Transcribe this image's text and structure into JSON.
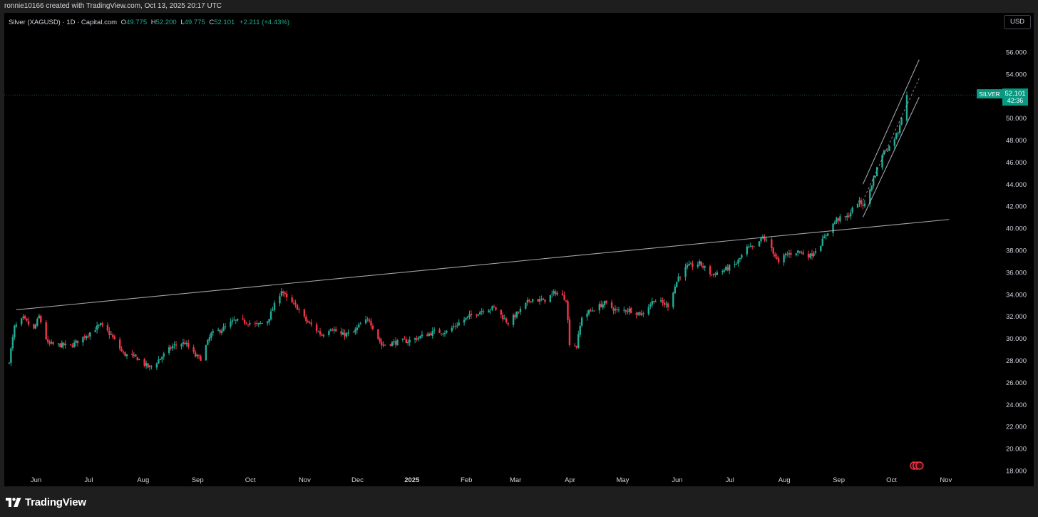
{
  "header": {
    "created_text": "ronnie10166 created with TradingView.com, Oct 13, 2025 20:17 UTC"
  },
  "legend": {
    "symbol": "Silver (XAGUSD) · 1D · Capital.com",
    "open_key": "O",
    "open": "49.775",
    "high_key": "H",
    "high": "52.200",
    "low_key": "L",
    "low": "49.775",
    "close_key": "C",
    "close": "52.101",
    "change": "+2.211 (+4.43%)"
  },
  "currency_button": "USD",
  "price_tag": {
    "symbol": "SILVER",
    "price": "52.101",
    "countdown": "42:36",
    "color": "#089981"
  },
  "y_axis": {
    "labels": [
      "56.000",
      "54.000",
      "52.000",
      "50.000",
      "48.000",
      "46.000",
      "44.000",
      "42.000",
      "40.000",
      "38.000",
      "36.000",
      "34.000",
      "32.000",
      "30.000",
      "28.000",
      "26.000",
      "24.000",
      "22.000",
      "20.000",
      "18.000"
    ]
  },
  "x_axis": {
    "labels": [
      "Jun",
      "Jul",
      "Aug",
      "Sep",
      "Oct",
      "Nov",
      "Dec",
      "2025",
      "Feb",
      "Mar",
      "Apr",
      "May",
      "Jun",
      "Jul",
      "Aug",
      "Sep",
      "Oct",
      "Nov"
    ]
  },
  "footer": {
    "brand": "TradingView"
  },
  "colors": {
    "up": "#22ab94",
    "down": "#f23645",
    "trendline": "#b2b5be",
    "background": "#000000"
  },
  "chart_data": {
    "type": "candlestick",
    "title": "Silver (XAGUSD) · 1D · Capital.com",
    "xlabel": "",
    "ylabel": "",
    "ylim": [
      17,
      58
    ],
    "y_ticks": [
      56,
      54,
      52,
      50,
      48,
      46,
      44,
      42,
      40,
      38,
      36,
      34,
      32,
      30,
      28,
      26,
      24,
      22,
      20,
      18
    ],
    "x_tick_labels": [
      "Jun",
      "Jul",
      "Aug",
      "Sep",
      "Oct",
      "Nov",
      "Dec",
      "2025",
      "Feb",
      "Mar",
      "Apr",
      "May",
      "Jun",
      "Jul",
      "Aug",
      "Sep",
      "Oct",
      "Nov"
    ],
    "current_price": 52.101,
    "series": [
      {
        "name": "XAGUSD close (approx.)",
        "points": [
          [
            "2024-05-20",
            28.0
          ],
          [
            "2024-05-23",
            31.0
          ],
          [
            "2024-05-28",
            31.8
          ],
          [
            "2024-06-03",
            30.8
          ],
          [
            "2024-06-06",
            32.0
          ],
          [
            "2024-06-11",
            29.5
          ],
          [
            "2024-06-18",
            29.4
          ],
          [
            "2024-06-24",
            29.3
          ],
          [
            "2024-07-02",
            30.2
          ],
          [
            "2024-07-08",
            30.9
          ],
          [
            "2024-07-11",
            31.2
          ],
          [
            "2024-07-17",
            30.3
          ],
          [
            "2024-07-24",
            28.6
          ],
          [
            "2024-08-01",
            28.2
          ],
          [
            "2024-08-07",
            27.4
          ],
          [
            "2024-08-09",
            27.4
          ],
          [
            "2024-08-14",
            28.2
          ],
          [
            "2024-08-21",
            29.3
          ],
          [
            "2024-08-28",
            29.6
          ],
          [
            "2024-09-03",
            28.4
          ],
          [
            "2024-09-06",
            28.2
          ],
          [
            "2024-09-12",
            30.4
          ],
          [
            "2024-09-18",
            30.8
          ],
          [
            "2024-09-25",
            31.6
          ],
          [
            "2024-10-02",
            31.5
          ],
          [
            "2024-10-08",
            31.2
          ],
          [
            "2024-10-14",
            31.6
          ],
          [
            "2024-10-22",
            34.4
          ],
          [
            "2024-10-25",
            33.6
          ],
          [
            "2024-10-31",
            32.8
          ],
          [
            "2024-11-05",
            31.6
          ],
          [
            "2024-11-08",
            31.2
          ],
          [
            "2024-11-14",
            30.3
          ],
          [
            "2024-11-19",
            31.0
          ],
          [
            "2024-11-25",
            30.3
          ],
          [
            "2024-12-02",
            30.5
          ],
          [
            "2024-12-06",
            31.3
          ],
          [
            "2024-12-11",
            31.7
          ],
          [
            "2024-12-18",
            29.4
          ],
          [
            "2024-12-24",
            29.6
          ],
          [
            "2025-01-03",
            29.8
          ],
          [
            "2025-01-10",
            30.2
          ],
          [
            "2025-01-17",
            30.6
          ],
          [
            "2025-01-24",
            30.6
          ],
          [
            "2025-01-31",
            31.4
          ],
          [
            "2025-02-06",
            32.0
          ],
          [
            "2025-02-14",
            32.6
          ],
          [
            "2025-02-20",
            32.8
          ],
          [
            "2025-02-28",
            31.4
          ],
          [
            "2025-03-06",
            32.4
          ],
          [
            "2025-03-13",
            33.6
          ],
          [
            "2025-03-20",
            33.4
          ],
          [
            "2025-03-27",
            34.2
          ],
          [
            "2025-04-02",
            33.6
          ],
          [
            "2025-04-04",
            29.6
          ],
          [
            "2025-04-08",
            29.3
          ],
          [
            "2025-04-11",
            32.0
          ],
          [
            "2025-04-17",
            32.6
          ],
          [
            "2025-04-24",
            33.2
          ],
          [
            "2025-05-01",
            32.5
          ],
          [
            "2025-05-08",
            32.6
          ],
          [
            "2025-05-15",
            32.2
          ],
          [
            "2025-05-22",
            33.5
          ],
          [
            "2025-05-30",
            33.0
          ],
          [
            "2025-06-05",
            35.6
          ],
          [
            "2025-06-10",
            36.5
          ],
          [
            "2025-06-17",
            36.8
          ],
          [
            "2025-06-24",
            35.8
          ],
          [
            "2025-07-01",
            36.2
          ],
          [
            "2025-07-08",
            36.8
          ],
          [
            "2025-07-14",
            38.2
          ],
          [
            "2025-07-18",
            38.2
          ],
          [
            "2025-07-23",
            39.2
          ],
          [
            "2025-07-28",
            38.2
          ],
          [
            "2025-08-01",
            36.8
          ],
          [
            "2025-08-05",
            37.6
          ],
          [
            "2025-08-12",
            37.9
          ],
          [
            "2025-08-19",
            37.5
          ],
          [
            "2025-08-25",
            38.6
          ],
          [
            "2025-08-29",
            39.7
          ],
          [
            "2025-09-03",
            40.8
          ],
          [
            "2025-09-09",
            41.0
          ],
          [
            "2025-09-15",
            42.4
          ],
          [
            "2025-09-19",
            42.1
          ],
          [
            "2025-09-23",
            44.0
          ],
          [
            "2025-09-29",
            46.8
          ],
          [
            "2025-10-03",
            47.4
          ],
          [
            "2025-10-08",
            48.8
          ],
          [
            "2025-10-10",
            50.2
          ],
          [
            "2025-10-13",
            52.1
          ]
        ]
      }
    ],
    "trendlines": [
      {
        "from": [
          "2024-05-24",
          32.6
        ],
        "to": [
          "2025-11-06",
          40.8
        ]
      },
      {
        "from": [
          "2025-09-18",
          44.0
        ],
        "to": [
          "2025-10-20",
          55.3
        ]
      },
      {
        "from": [
          "2025-09-18",
          41.0
        ],
        "to": [
          "2025-10-20",
          51.9
        ]
      }
    ],
    "legend_position": "top-left"
  }
}
